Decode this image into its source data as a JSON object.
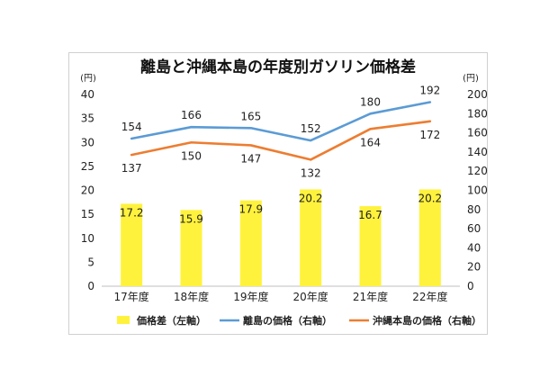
{
  "chart_data": {
    "type": "bar+line",
    "title": "離島と沖縄本島の年度別ガソリン価格差",
    "categories": [
      "17年度",
      "18年度",
      "19年度",
      "20年度",
      "21年度",
      "22年度"
    ],
    "left_axis": {
      "unit": "(円)",
      "min": 0,
      "max": 40,
      "step": 5
    },
    "right_axis": {
      "unit": "(円)",
      "min": 0,
      "max": 200,
      "step": 20
    },
    "grid": false,
    "legend_position": "bottom",
    "series": [
      {
        "name": "価格差（左軸）",
        "type": "bar",
        "axis": "left",
        "color": "#FFF23D",
        "values": [
          17.2,
          15.9,
          17.9,
          20.2,
          16.7,
          20.2
        ],
        "labels": [
          "17.2",
          "15.9",
          "17.9",
          "20.2",
          "16.7",
          "20.2"
        ]
      },
      {
        "name": "離島の価格（右軸）",
        "type": "line",
        "axis": "right",
        "color": "#5B9BD5",
        "values": [
          154,
          166,
          165,
          152,
          180,
          192
        ]
      },
      {
        "name": "沖縄本島の価格（右軸）",
        "type": "line",
        "axis": "right",
        "color": "#ED7D31",
        "values": [
          137,
          150,
          147,
          132,
          164,
          172
        ]
      }
    ]
  }
}
